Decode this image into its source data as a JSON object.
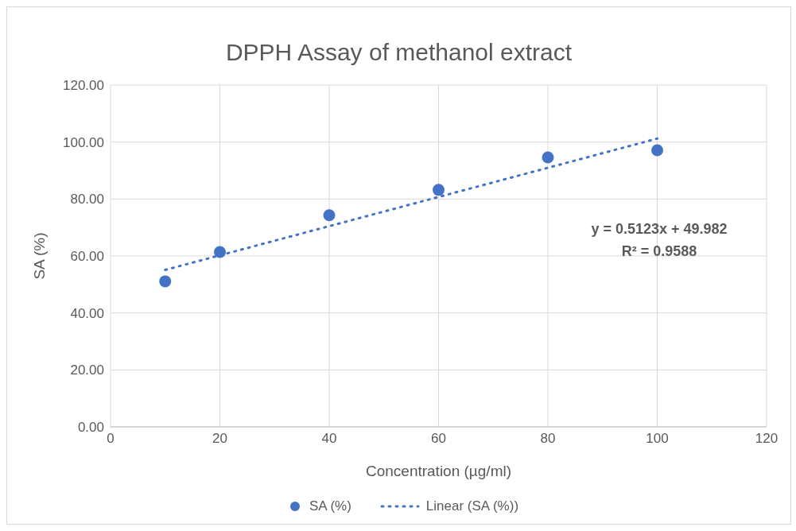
{
  "chart_data": {
    "type": "scatter",
    "title": "DPPH Assay of methanol extract",
    "xlabel": "Concentration (µg/ml)",
    "ylabel": "SA (%)",
    "series": [
      {
        "name": "SA (%)",
        "color": "#4472c4",
        "marker": "circle",
        "x": [
          10,
          20,
          40,
          60,
          80,
          100
        ],
        "values": [
          51.1,
          61.4,
          74.3,
          83.2,
          94.6,
          97.1
        ]
      },
      {
        "name": "Linear (SA (%))",
        "type": "line",
        "color": "#4472c4",
        "line_style": "dotted",
        "marker": "none",
        "x": [
          10,
          100
        ],
        "values": [
          55.1,
          101.2
        ]
      }
    ],
    "xlim": [
      0,
      120
    ],
    "xticks": [
      0,
      20,
      40,
      60,
      80,
      100,
      120
    ],
    "ylim": [
      0,
      120
    ],
    "yticks": [
      {
        "value": 0,
        "label": "0.00"
      },
      {
        "value": 20,
        "label": "20.00"
      },
      {
        "value": 40,
        "label": "40.00"
      },
      {
        "value": 60,
        "label": "60.00"
      },
      {
        "value": 80,
        "label": "80.00"
      },
      {
        "value": 100,
        "label": "100.00"
      },
      {
        "value": 120,
        "label": "120.00"
      }
    ],
    "grid": true,
    "legend": "bottom",
    "annotations": [
      "y = 0.5123x + 49.982",
      "R² = 0.9588"
    ]
  }
}
